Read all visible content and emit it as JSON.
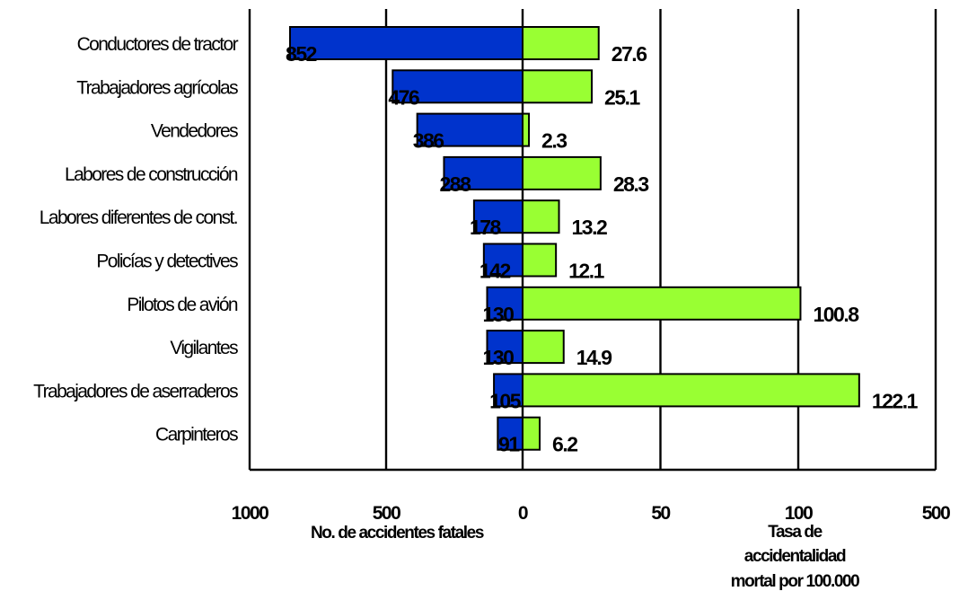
{
  "chart_data": {
    "type": "bar",
    "orientation": "horizontal",
    "categories": [
      "Conductores de tractor",
      "Trabajadores agrícolas",
      "Vendedores",
      "Labores de construcción",
      "Labores diferentes de const.",
      "Policías y detectives",
      "Pilotos de avión",
      "Vigilantes",
      "Trabajadores de aserraderos",
      "Carpinteros"
    ],
    "series": [
      {
        "values": [
          852,
          476,
          386,
          288,
          178,
          142,
          130,
          130,
          105,
          91
        ],
        "labels": [
          "852",
          "476",
          "386",
          "288",
          "178",
          "142",
          "130",
          "130",
          "105",
          "91"
        ],
        "color": "#0033cc",
        "side": "left",
        "xlim": [
          1000,
          0
        ]
      },
      {
        "values": [
          27.6,
          25.1,
          2.3,
          28.3,
          13.2,
          12.1,
          100.8,
          14.9,
          122.1,
          6.2
        ],
        "labels": [
          "27.6",
          "25.1",
          "2.3",
          "28.3",
          "13.2",
          "12.1",
          "100.8",
          "14.9",
          "122.1",
          "6.2"
        ],
        "color": "#99ff33",
        "side": "right",
        "xlim": [
          0,
          500
        ]
      }
    ],
    "left_axis": {
      "ticks": [
        1000,
        500,
        0
      ],
      "tick_labels": [
        "1000",
        "500",
        "0"
      ],
      "title": "No. de accidentes fatales"
    },
    "right_axis": {
      "ticks": [
        0,
        50,
        100,
        500
      ],
      "tick_labels": [
        "0",
        "50",
        "100",
        "500"
      ],
      "title_lines": [
        "Tasa de",
        "accidentalidad",
        "mortal por 100.000"
      ]
    },
    "grid": true,
    "legend": "none"
  }
}
